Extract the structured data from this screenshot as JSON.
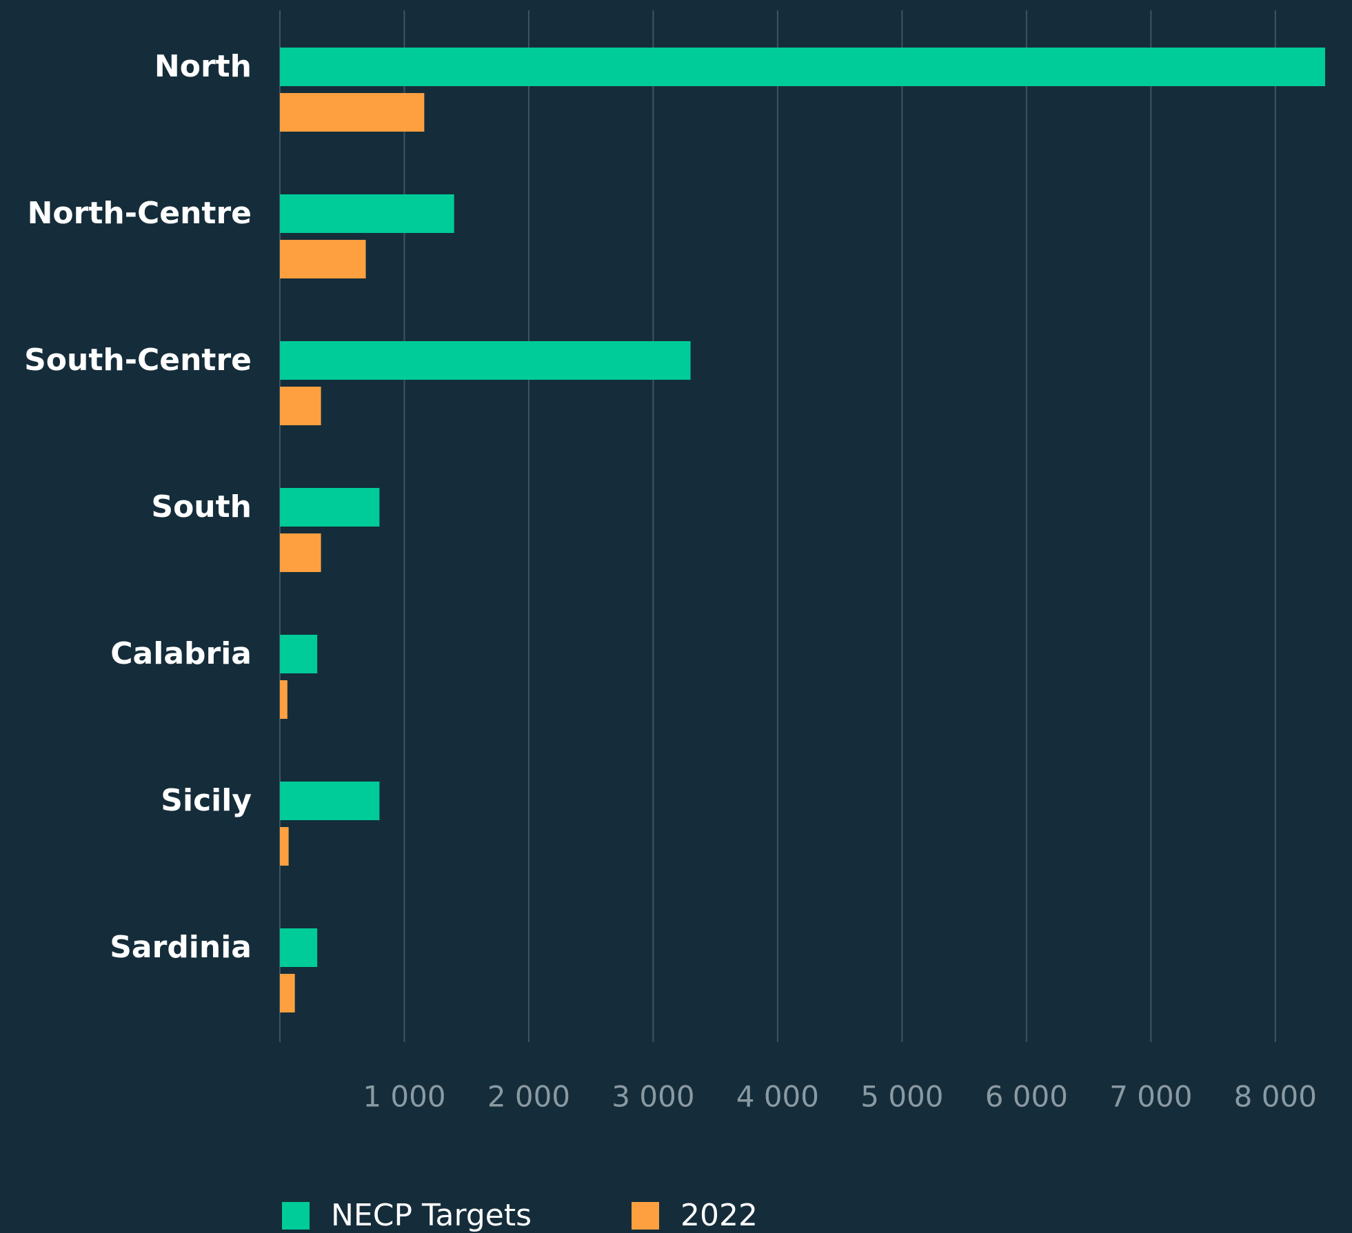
{
  "chart_data": {
    "type": "hbar",
    "categories": [
      "North",
      "North-Centre",
      "South-Centre",
      "South",
      "Calabria",
      "Sicily",
      "Sardinia"
    ],
    "series": [
      {
        "name": "NECP Targets",
        "color": "#00cc99",
        "values": [
          8400,
          1400,
          3300,
          800,
          300,
          800,
          300
        ]
      },
      {
        "name": "2022",
        "color": "#ffa040",
        "values": [
          1160,
          690,
          330,
          330,
          60,
          70,
          120
        ]
      }
    ],
    "xlim": [
      0,
      8400
    ],
    "xticks": [
      {
        "value": 1000,
        "label": "1 000"
      },
      {
        "value": 2000,
        "label": "2 000"
      },
      {
        "value": 3000,
        "label": "3 000"
      },
      {
        "value": 4000,
        "label": "4 000"
      },
      {
        "value": 5000,
        "label": "5 000"
      },
      {
        "value": 6000,
        "label": "6 000"
      },
      {
        "value": 7000,
        "label": "7 000"
      },
      {
        "value": 8000,
        "label": "8 000"
      }
    ],
    "grid": true,
    "legend": "bottom"
  }
}
